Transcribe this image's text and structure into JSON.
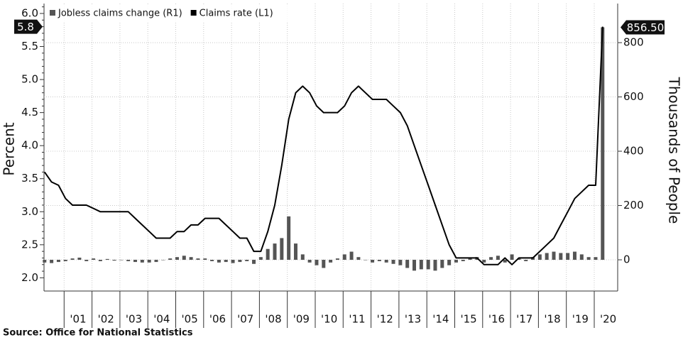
{
  "chart_data": {
    "type": "combo",
    "x_axis_labels_between_ticks": true,
    "xlim": [
      2000.28,
      2020.84
    ],
    "xticks": [
      {
        "value": 2001,
        "label": "'01"
      },
      {
        "value": 2002,
        "label": "'02"
      },
      {
        "value": 2003,
        "label": "'03"
      },
      {
        "value": 2004,
        "label": "'04"
      },
      {
        "value": 2005,
        "label": "'05"
      },
      {
        "value": 2006,
        "label": "'06"
      },
      {
        "value": 2007,
        "label": "'07"
      },
      {
        "value": 2008,
        "label": "'08"
      },
      {
        "value": 2009,
        "label": "'09"
      },
      {
        "value": 2010,
        "label": "'10"
      },
      {
        "value": 2011,
        "label": "'11"
      },
      {
        "value": 2012,
        "label": "'12"
      },
      {
        "value": 2013,
        "label": "'13"
      },
      {
        "value": 2014,
        "label": "'14"
      },
      {
        "value": 2015,
        "label": "'15"
      },
      {
        "value": 2016,
        "label": "'16"
      },
      {
        "value": 2017,
        "label": "'17"
      },
      {
        "value": 2018,
        "label": "'18"
      },
      {
        "value": 2019,
        "label": "'19"
      },
      {
        "value": 2020,
        "label": "'20"
      }
    ],
    "ylabel": "Percent",
    "ylim": [
      1.8,
      6.15
    ],
    "yticks": [
      {
        "value": 2,
        "label": "2.0"
      },
      2.5,
      {
        "value": 3,
        "label": "3.0"
      },
      3.5,
      {
        "value": 4,
        "label": "4.0"
      },
      4.5,
      {
        "value": 5,
        "label": "5.0"
      },
      5.5,
      {
        "value": 6,
        "label": "6.0"
      }
    ],
    "y2label": "Thousands of People",
    "y2lim": [
      -115,
      944
    ],
    "y2ticks": [
      0,
      200,
      400,
      600,
      800
    ],
    "grid": true,
    "legend": "top-left",
    "source": "Source:  Office for National Statistics",
    "x": [
      2000.3,
      2000.55,
      2000.8,
      2001.05,
      2001.3,
      2001.55,
      2001.8,
      2002.05,
      2002.3,
      2002.55,
      2002.8,
      2003.05,
      2003.3,
      2003.55,
      2003.8,
      2004.05,
      2004.3,
      2004.55,
      2004.8,
      2005.05,
      2005.3,
      2005.55,
      2005.8,
      2006.05,
      2006.3,
      2006.55,
      2006.8,
      2007.05,
      2007.3,
      2007.55,
      2007.8,
      2008.05,
      2008.3,
      2008.55,
      2008.8,
      2009.05,
      2009.3,
      2009.55,
      2009.8,
      2010.05,
      2010.3,
      2010.55,
      2010.8,
      2011.05,
      2011.3,
      2011.55,
      2011.8,
      2012.05,
      2012.3,
      2012.55,
      2012.8,
      2013.05,
      2013.3,
      2013.55,
      2013.8,
      2014.05,
      2014.3,
      2014.55,
      2014.8,
      2015.05,
      2015.3,
      2015.55,
      2015.8,
      2016.05,
      2016.3,
      2016.55,
      2016.8,
      2017.05,
      2017.3,
      2017.55,
      2017.8,
      2018.05,
      2018.3,
      2018.55,
      2018.8,
      2019.05,
      2019.3,
      2019.55,
      2019.8,
      2020.05,
      2020.3
    ],
    "series": [
      {
        "name": "Jobless claims change (R1)",
        "type": "bar",
        "axis": "y2",
        "color": "#555555",
        "values": [
          -10,
          -12,
          -8,
          -5,
          5,
          8,
          -5,
          5,
          -5,
          3,
          -3,
          0,
          -5,
          -8,
          -10,
          -10,
          -8,
          0,
          5,
          10,
          15,
          10,
          5,
          5,
          -5,
          -10,
          -8,
          -12,
          -8,
          -5,
          -15,
          10,
          40,
          60,
          80,
          160,
          60,
          20,
          -10,
          -20,
          -30,
          -10,
          5,
          20,
          30,
          10,
          0,
          -10,
          -5,
          -10,
          -15,
          -20,
          -30,
          -40,
          -35,
          -35,
          -40,
          -30,
          -20,
          -10,
          -5,
          5,
          10,
          -10,
          10,
          15,
          -10,
          20,
          5,
          -5,
          10,
          20,
          25,
          30,
          25,
          25,
          30,
          20,
          10,
          10,
          856.5
        ],
        "value_labels": [
          null,
          null,
          null,
          null,
          null,
          null,
          null,
          null,
          null,
          null,
          null,
          null,
          null,
          null,
          null,
          null,
          null,
          null,
          null,
          null,
          null,
          null,
          null,
          null,
          null,
          null,
          null,
          null,
          null,
          null,
          null,
          null,
          null,
          null,
          null,
          null,
          null,
          null,
          null,
          null,
          null,
          null,
          null,
          null,
          null,
          null,
          null,
          null,
          null,
          null,
          null,
          null,
          null,
          null,
          null,
          null,
          null,
          null,
          null,
          null,
          null,
          null,
          null,
          null,
          null,
          null,
          null,
          null,
          null,
          null,
          null,
          null,
          null,
          null,
          null,
          null,
          null,
          null,
          null,
          null,
          "856.50"
        ]
      },
      {
        "name": "Claims rate (L1)",
        "type": "line",
        "axis": "y",
        "color": "#000000",
        "values": [
          3.6,
          3.45,
          3.4,
          3.2,
          3.1,
          3.1,
          3.1,
          3.05,
          3.0,
          3.0,
          3.0,
          3.0,
          3.0,
          2.9,
          2.8,
          2.7,
          2.6,
          2.6,
          2.6,
          2.7,
          2.7,
          2.8,
          2.8,
          2.9,
          2.9,
          2.9,
          2.8,
          2.7,
          2.6,
          2.6,
          2.4,
          2.4,
          2.7,
          3.1,
          3.7,
          4.4,
          4.8,
          4.9,
          4.8,
          4.6,
          4.5,
          4.5,
          4.5,
          4.6,
          4.8,
          4.9,
          4.8,
          4.7,
          4.7,
          4.7,
          4.6,
          4.5,
          4.3,
          4.0,
          3.7,
          3.4,
          3.1,
          2.8,
          2.5,
          2.3,
          2.3,
          2.3,
          2.3,
          2.2,
          2.2,
          2.2,
          2.3,
          2.2,
          2.3,
          2.3,
          2.3,
          2.4,
          2.5,
          2.6,
          2.8,
          3.0,
          3.2,
          3.3,
          3.4,
          3.4,
          5.8
        ]
      }
    ]
  }
}
